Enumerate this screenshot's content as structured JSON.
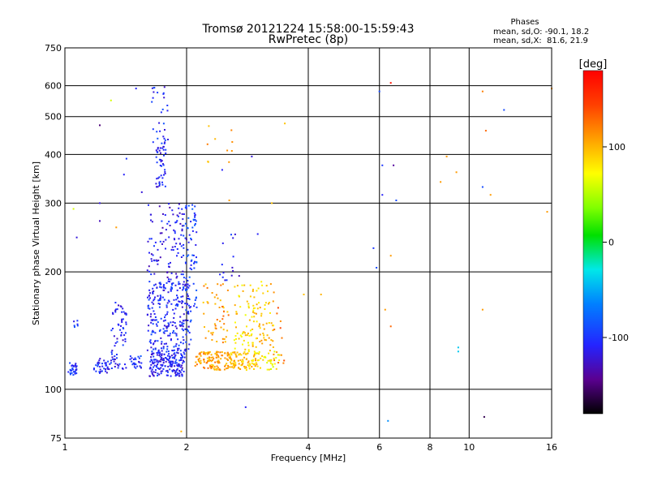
{
  "chart_data": {
    "type": "scatter",
    "title": "Tromsø 20121224 15:58:00-15:59:43",
    "subtitle": "RwPretec (8p)",
    "xlabel": "Frequency [MHz]",
    "ylabel": "Stationary phase Virtual Height [km]",
    "x_scale": "log",
    "y_scale": "log",
    "xlim": [
      1,
      16
    ],
    "ylim": [
      75,
      750
    ],
    "x_ticks": [
      1,
      2,
      4,
      6,
      8,
      10,
      16
    ],
    "x_tick_labels": [
      "1",
      "2",
      "4",
      "6",
      "8",
      "10",
      "16"
    ],
    "y_ticks": [
      75,
      100,
      200,
      300,
      400,
      500,
      600,
      750
    ],
    "y_tick_labels": [
      "75",
      "100",
      "200",
      "300",
      "400",
      "500",
      "600",
      "750"
    ],
    "grid": true,
    "phases_heading": "Phases",
    "phases_lines": [
      "mean, sd,O: -90.1, 18.2",
      "mean, sd,X:  81.6, 21.9"
    ],
    "colorbar": {
      "unit": "[deg]",
      "range": [
        -180,
        180
      ],
      "ticks": [
        100,
        0,
        -100
      ],
      "tick_labels": [
        "100",
        "0",
        "-100"
      ]
    },
    "clusters": [
      {
        "f": [
          1.02,
          1.07
        ],
        "h": [
          108,
          118
        ],
        "phase": -100,
        "count": 30
      },
      {
        "f": [
          1.05,
          1.08
        ],
        "h": [
          140,
          150
        ],
        "phase": -100,
        "count": 6
      },
      {
        "f": [
          1.18,
          1.3
        ],
        "h": [
          110,
          120
        ],
        "phase": -110,
        "count": 35
      },
      {
        "f": [
          1.3,
          1.42
        ],
        "h": [
          112,
          170
        ],
        "phase": -110,
        "count": 70
      },
      {
        "f": [
          1.45,
          1.55
        ],
        "h": [
          112,
          122
        ],
        "phase": -100,
        "count": 25
      },
      {
        "f": [
          1.62,
          1.98
        ],
        "h": [
          108,
          125
        ],
        "phase": -110,
        "count": 180
      },
      {
        "f": [
          1.6,
          2.05
        ],
        "h": [
          125,
          190
        ],
        "phase": -105,
        "count": 260
      },
      {
        "f": [
          1.6,
          2.0
        ],
        "h": [
          190,
          300
        ],
        "phase": -115,
        "count": 100
      },
      {
        "f": [
          1.68,
          1.78
        ],
        "h": [
          330,
          420
        ],
        "phase": -110,
        "count": 45
      },
      {
        "f": [
          1.64,
          1.8
        ],
        "h": [
          420,
          600
        ],
        "phase": -105,
        "count": 30
      },
      {
        "f": [
          1.95,
          2.12
        ],
        "h": [
          150,
          300
        ],
        "phase": -95,
        "count": 80
      },
      {
        "f": [
          2.1,
          2.55
        ],
        "h": [
          112,
          125
        ],
        "phase": 110,
        "count": 110
      },
      {
        "f": [
          2.2,
          2.55
        ],
        "h": [
          130,
          190
        ],
        "phase": 110,
        "count": 50
      },
      {
        "f": [
          2.55,
          3.0
        ],
        "h": [
          112,
          125
        ],
        "phase": 95,
        "count": 90
      },
      {
        "f": [
          2.6,
          2.95
        ],
        "h": [
          125,
          185
        ],
        "phase": 85,
        "count": 60
      },
      {
        "f": [
          2.9,
          3.4
        ],
        "h": [
          112,
          125
        ],
        "phase": 75,
        "count": 40
      },
      {
        "f": [
          2.9,
          3.3
        ],
        "h": [
          125,
          190
        ],
        "phase": 95,
        "count": 60
      },
      {
        "f": [
          3.25,
          3.5
        ],
        "h": [
          112,
          170
        ],
        "phase": 125,
        "count": 15
      },
      {
        "f": [
          2.4,
          2.7
        ],
        "h": [
          190,
          250
        ],
        "phase": -110,
        "count": 15
      },
      {
        "f": [
          2.25,
          2.6
        ],
        "h": [
          380,
          480
        ],
        "phase": 105,
        "count": 10
      }
    ],
    "points": [
      {
        "f": 1.05,
        "h": 290,
        "phase": 60
      },
      {
        "f": 1.07,
        "h": 245,
        "phase": -120
      },
      {
        "f": 1.22,
        "h": 475,
        "phase": -150
      },
      {
        "f": 1.22,
        "h": 300,
        "phase": -120
      },
      {
        "f": 1.22,
        "h": 270,
        "phase": -130
      },
      {
        "f": 1.3,
        "h": 550,
        "phase": 60
      },
      {
        "f": 1.34,
        "h": 260,
        "phase": 110
      },
      {
        "f": 1.4,
        "h": 355,
        "phase": -110
      },
      {
        "f": 1.42,
        "h": 390,
        "phase": -100
      },
      {
        "f": 1.5,
        "h": 590,
        "phase": -110
      },
      {
        "f": 1.55,
        "h": 320,
        "phase": -120
      },
      {
        "f": 1.94,
        "h": 78,
        "phase": 100
      },
      {
        "f": 2.45,
        "h": 365,
        "phase": -110
      },
      {
        "f": 2.55,
        "h": 305,
        "phase": 110
      },
      {
        "f": 2.8,
        "h": 90,
        "phase": -110
      },
      {
        "f": 2.9,
        "h": 395,
        "phase": -120
      },
      {
        "f": 3.0,
        "h": 250,
        "phase": -110
      },
      {
        "f": 3.25,
        "h": 300,
        "phase": 95
      },
      {
        "f": 3.5,
        "h": 480,
        "phase": 95
      },
      {
        "f": 3.9,
        "h": 175,
        "phase": 95
      },
      {
        "f": 4.3,
        "h": 175,
        "phase": 100
      },
      {
        "f": 5.8,
        "h": 230,
        "phase": -100
      },
      {
        "f": 5.9,
        "h": 205,
        "phase": -90
      },
      {
        "f": 6.0,
        "h": 580,
        "phase": -90
      },
      {
        "f": 6.1,
        "h": 375,
        "phase": -100
      },
      {
        "f": 6.1,
        "h": 315,
        "phase": -110
      },
      {
        "f": 6.2,
        "h": 160,
        "phase": 110
      },
      {
        "f": 6.3,
        "h": 83,
        "phase": -60
      },
      {
        "f": 6.4,
        "h": 610,
        "phase": 170
      },
      {
        "f": 6.5,
        "h": 375,
        "phase": -140
      },
      {
        "f": 6.6,
        "h": 305,
        "phase": -90
      },
      {
        "f": 6.4,
        "h": 220,
        "phase": 110
      },
      {
        "f": 6.4,
        "h": 145,
        "phase": 130
      },
      {
        "f": 8.5,
        "h": 340,
        "phase": 110
      },
      {
        "f": 8.8,
        "h": 395,
        "phase": 110
      },
      {
        "f": 9.3,
        "h": 360,
        "phase": 110
      },
      {
        "f": 9.4,
        "h": 128,
        "phase": -40
      },
      {
        "f": 9.4,
        "h": 125,
        "phase": -40
      },
      {
        "f": 10.8,
        "h": 580,
        "phase": 120
      },
      {
        "f": 10.8,
        "h": 330,
        "phase": -90
      },
      {
        "f": 10.8,
        "h": 160,
        "phase": 110
      },
      {
        "f": 10.9,
        "h": 85,
        "phase": -160
      },
      {
        "f": 11.0,
        "h": 460,
        "phase": 130
      },
      {
        "f": 11.3,
        "h": 315,
        "phase": 110
      },
      {
        "f": 12.2,
        "h": 520,
        "phase": -90
      },
      {
        "f": 15.6,
        "h": 285,
        "phase": 110
      },
      {
        "f": 16.0,
        "h": 590,
        "phase": 110
      }
    ]
  }
}
